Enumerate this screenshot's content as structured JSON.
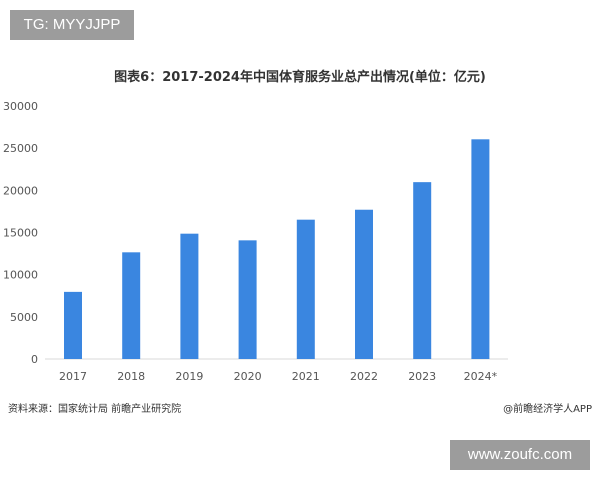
{
  "watermark_top": "TG: MYYJJPP",
  "watermark_bottom": "www.zoufc.com",
  "source": "资料来源：国家统计局 前瞻产业研究院",
  "brand": "@前瞻经济学人APP",
  "chart_data": {
    "type": "bar",
    "title": "图表6：2017-2024年中国体育服务业总产出情况(单位：亿元)",
    "categories": [
      "2017",
      "2018",
      "2019",
      "2020",
      "2021",
      "2022",
      "2023",
      "2024*"
    ],
    "values": [
      7960,
      12650,
      14860,
      14070,
      16520,
      17700,
      20970,
      26050
    ],
    "ylim": [
      0,
      30000
    ],
    "yticks": [
      0,
      5000,
      10000,
      15000,
      20000,
      25000,
      30000
    ],
    "xlabel": "",
    "ylabel": "",
    "grid": false,
    "bar_color": "#3a86e0"
  }
}
